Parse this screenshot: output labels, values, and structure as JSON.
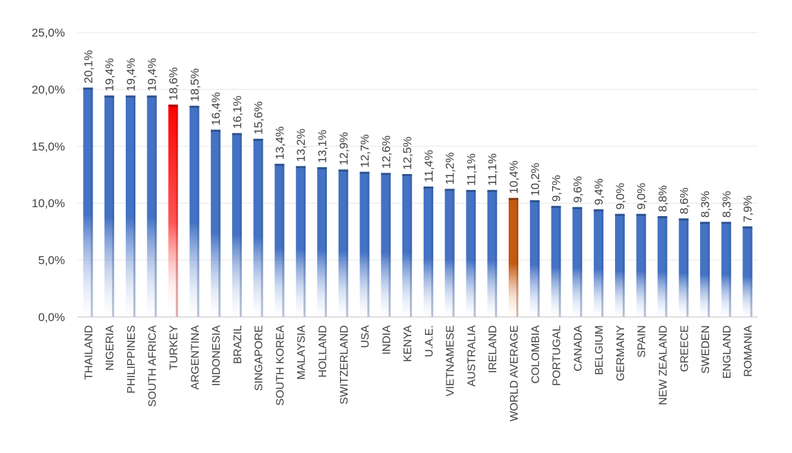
{
  "chart_data": {
    "type": "bar",
    "title": "",
    "xlabel": "",
    "ylabel": "",
    "ylim": [
      0,
      25
    ],
    "y_ticks": [
      "0,0%",
      "5,0%",
      "10,0%",
      "15,0%",
      "20,0%",
      "25,0%"
    ],
    "grid": true,
    "legend": "none",
    "colors": {
      "default": "#4472c4",
      "highlight": "#ff0000",
      "average": "#c55a11",
      "grid": "#e6e6e6",
      "axis": "#bfbfbf",
      "text": "#404040"
    },
    "categories": [
      "THAILAND",
      "NIGERIA",
      "PHILIPPINES",
      "SOUTH AFRICA",
      "TURKEY",
      "ARGENTINA",
      "INDONESIA",
      "BRAZIL",
      "SINGAPORE",
      "SOUTH KOREA",
      "MALAYSIA",
      "HOLLAND",
      "SWITZERLAND",
      "USA",
      "INDIA",
      "KENYA",
      "U.A.E.",
      "VIETNAMESE",
      "AUSTRALIA",
      "IRELAND",
      "WORLD AVERAGE",
      "COLOMBIA",
      "PORTUGAL",
      "CANADA",
      "BELGIUM",
      "GERMANY",
      "SPAIN",
      "NEW ZEALAND",
      "GREECE",
      "SWEDEN",
      "ENGLAND",
      "ROMANIA"
    ],
    "values": [
      20.1,
      19.4,
      19.4,
      19.4,
      18.6,
      18.5,
      16.4,
      16.1,
      15.6,
      13.4,
      13.2,
      13.1,
      12.9,
      12.7,
      12.6,
      12.5,
      11.4,
      11.2,
      11.1,
      11.1,
      10.4,
      10.2,
      9.7,
      9.6,
      9.4,
      9.0,
      9.0,
      8.8,
      8.6,
      8.3,
      8.3,
      7.9
    ],
    "value_labels": [
      "20,1%",
      "19,4%",
      "19,4%",
      "19,4%",
      "18,6%",
      "18,5%",
      "16,4%",
      "16,1%",
      "15,6%",
      "13,4%",
      "13,2%",
      "13,1%",
      "12,9%",
      "12,7%",
      "12,6%",
      "12,5%",
      "11,4%",
      "11,2%",
      "11,1%",
      "11,1%",
      "10,4%",
      "10,2%",
      "9,7%",
      "9,6%",
      "9,4%",
      "9,0%",
      "9,0%",
      "8,8%",
      "8,6%",
      "8,3%",
      "8,3%",
      "7,9%"
    ],
    "highlight": {
      "TURKEY": "highlight",
      "WORLD AVERAGE": "average"
    }
  }
}
